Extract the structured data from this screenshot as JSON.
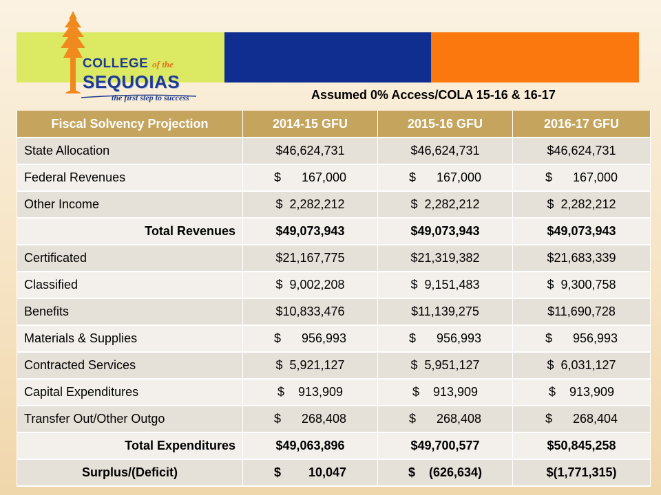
{
  "logo": {
    "college": "COLLEGE",
    "of_the": "of the",
    "sequoias": "SEQUOIAS",
    "tagline": "the first step to success",
    "colors": {
      "tree": "#f08a1e",
      "text": "#1e3a8c"
    }
  },
  "banner_colors": {
    "green": "#dcea63",
    "blue": "#0f2e8f",
    "orange": "#fa780d"
  },
  "subtitle": "Assumed 0% Access/COLA 15-16 & 16-17",
  "table": {
    "headers": [
      "Fiscal Solvency Projection",
      "2014-15 GFU",
      "2015-16 GFU",
      "2016-17 GFU"
    ],
    "rows": [
      {
        "label": "State Allocation",
        "values": [
          "$46,624,731",
          "$46,624,731",
          "$46,624,731"
        ],
        "type": "line"
      },
      {
        "label": "Federal Revenues",
        "values": [
          "$      167,000",
          "$      167,000",
          "$      167,000"
        ],
        "type": "line"
      },
      {
        "label": "Other Income",
        "values": [
          "$  2,282,212",
          "$  2,282,212",
          "$  2,282,212"
        ],
        "type": "line"
      },
      {
        "label": "Total Revenues",
        "values": [
          "$49,073,943",
          "$49,073,943",
          "$49,073,943"
        ],
        "type": "total"
      },
      {
        "label": "Certificated",
        "values": [
          "$21,167,775",
          "$21,319,382",
          "$21,683,339"
        ],
        "type": "line"
      },
      {
        "label": "Classified",
        "values": [
          "$  9,002,208",
          "$  9,151,483",
          "$  9,300,758"
        ],
        "type": "line"
      },
      {
        "label": "Benefits",
        "values": [
          "$10,833,476",
          "$11,139,275",
          "$11,690,728"
        ],
        "type": "line"
      },
      {
        "label": "Materials & Supplies",
        "values": [
          "$      956,993",
          "$      956,993",
          "$      956,993"
        ],
        "type": "line"
      },
      {
        "label": "Contracted Services",
        "values": [
          "$  5,921,127",
          "$  5,951,127",
          "$  6,031,127"
        ],
        "type": "line"
      },
      {
        "label": "Capital Expenditures",
        "values": [
          "$    913,909",
          "$    913,909",
          "$    913,909"
        ],
        "type": "line"
      },
      {
        "label": "Transfer Out/Other Outgo",
        "values": [
          "$      268,408",
          "$      268,408",
          "$      268,404"
        ],
        "type": "line"
      },
      {
        "label": "Total Expenditures",
        "values": [
          "$49,063,896",
          "$49,700,577",
          "$50,845,258"
        ],
        "type": "total"
      },
      {
        "label": "Surplus/(Deficit)",
        "values": [
          "$        10,047",
          "$    (626,634)",
          "$(1,771,315)"
        ],
        "type": "surplus"
      }
    ]
  }
}
